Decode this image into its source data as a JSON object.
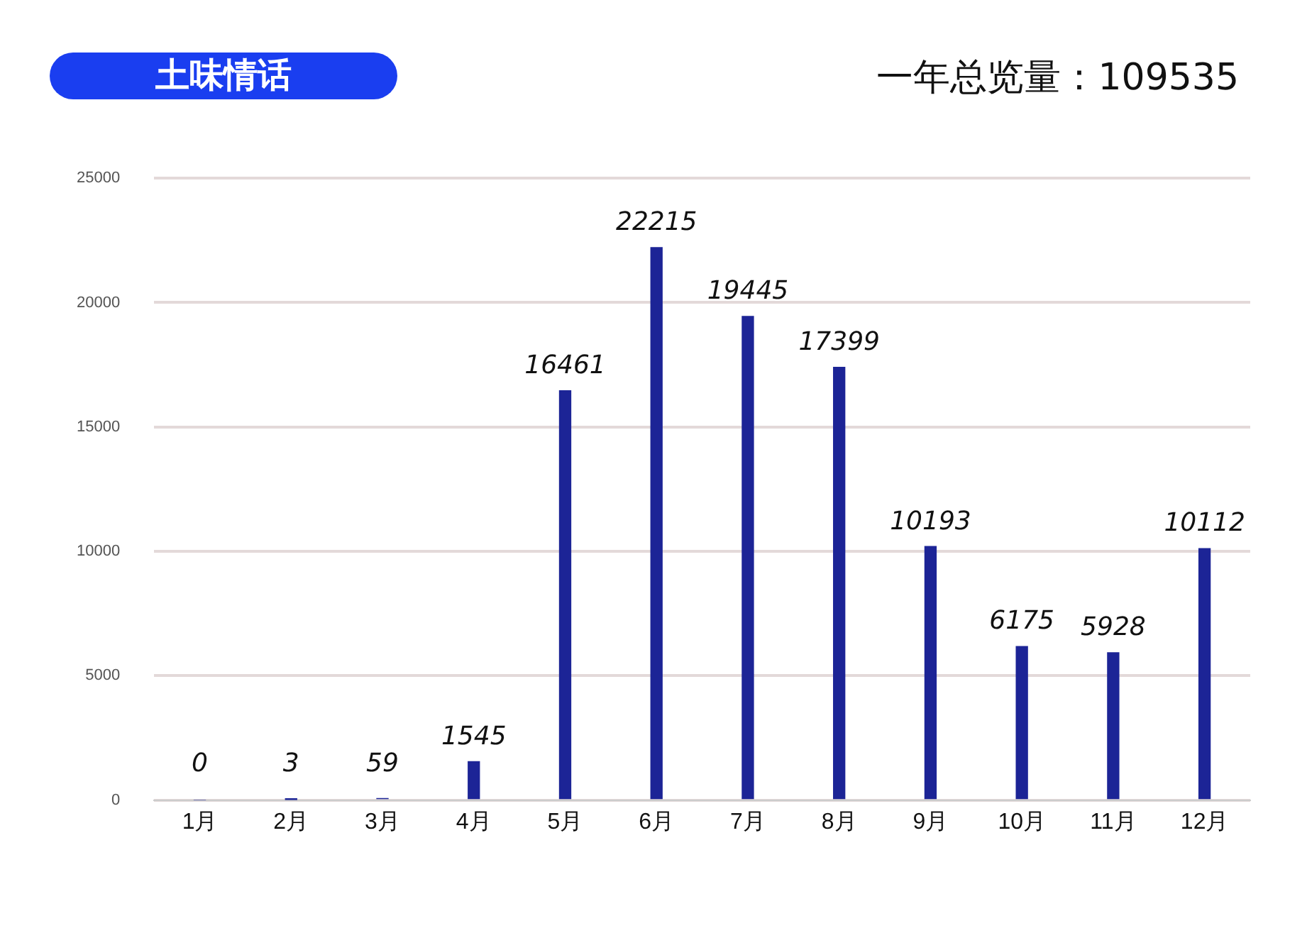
{
  "chart_data": {
    "type": "bar",
    "title": "土味情话",
    "subtitle": "一年总览量：109535",
    "categories": [
      "1月",
      "2月",
      "3月",
      "4月",
      "5月",
      "6月",
      "7月",
      "8月",
      "9月",
      "10月",
      "11月",
      "12月"
    ],
    "values": [
      0,
      3,
      59,
      1545,
      16461,
      22215,
      19445,
      17399,
      10193,
      6175,
      5928,
      10112
    ],
    "color": "#1c2496",
    "ylim": [
      0,
      25000
    ],
    "yticks": [
      0,
      5000,
      10000,
      15000,
      20000,
      25000
    ],
    "grid": "y",
    "data_labels": true
  }
}
